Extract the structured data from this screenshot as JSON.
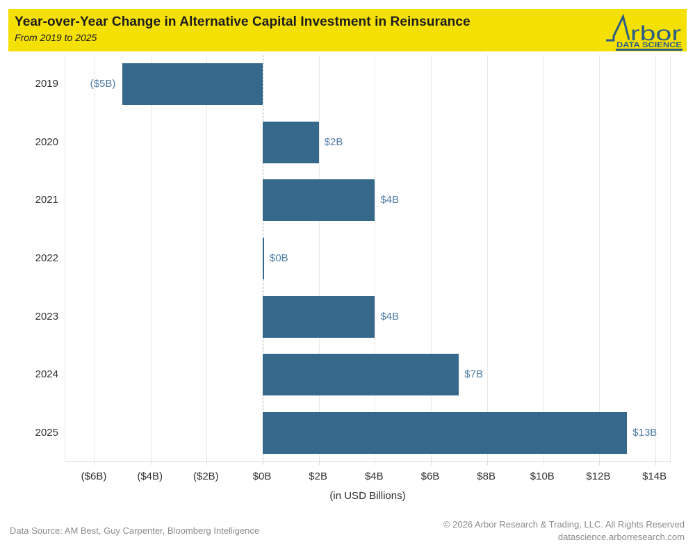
{
  "header": {
    "title": "Year-over-Year Change in Alternative Capital Investment in Reinsurance",
    "subtitle": "From 2019 to 2025",
    "banner_color": "#F5E003",
    "logo": {
      "brand_text": "rbor",
      "tagline": "DATA SCIENCE",
      "color": "#2C5D84",
      "mark": "line-spike-a-icon"
    }
  },
  "chart_data": {
    "type": "bar",
    "orientation": "horizontal",
    "title": "Year-over-Year Change in Alternative Capital Investment in Reinsurance",
    "subtitle": "From 2019 to 2025",
    "categories": [
      "2019",
      "2020",
      "2021",
      "2022",
      "2023",
      "2024",
      "2025"
    ],
    "values": [
      -5,
      2,
      4,
      0,
      4,
      7,
      13
    ],
    "bar_labels": [
      "($5B)",
      "$2B",
      "$4B",
      "$0B",
      "$4B",
      "$7B",
      "$13B"
    ],
    "x_ticks": [
      -6,
      -4,
      -2,
      0,
      2,
      4,
      6,
      8,
      10,
      12,
      14
    ],
    "x_tick_labels": [
      "($6B)",
      "($4B)",
      "($2B)",
      "$0B",
      "$2B",
      "$4B",
      "$6B",
      "$8B",
      "$10B",
      "$12B",
      "$14B"
    ],
    "xlabel": "(in USD Billions)",
    "ylabel": "",
    "xlim": [
      -7.05,
      14.6
    ],
    "grid": true,
    "zero_line": "dotted",
    "legend": "none",
    "bar_color": "#35688B",
    "label_color": "#4E7CA6",
    "units": "USD Billions"
  },
  "footer": {
    "source": "Data Source: AM Best, Guy Carpenter, Bloomberg Intelligence",
    "copyright": "© 2026 Arbor Research & Trading, LLC. All Rights Reserved",
    "website": "datascience.arborresearch.com"
  }
}
